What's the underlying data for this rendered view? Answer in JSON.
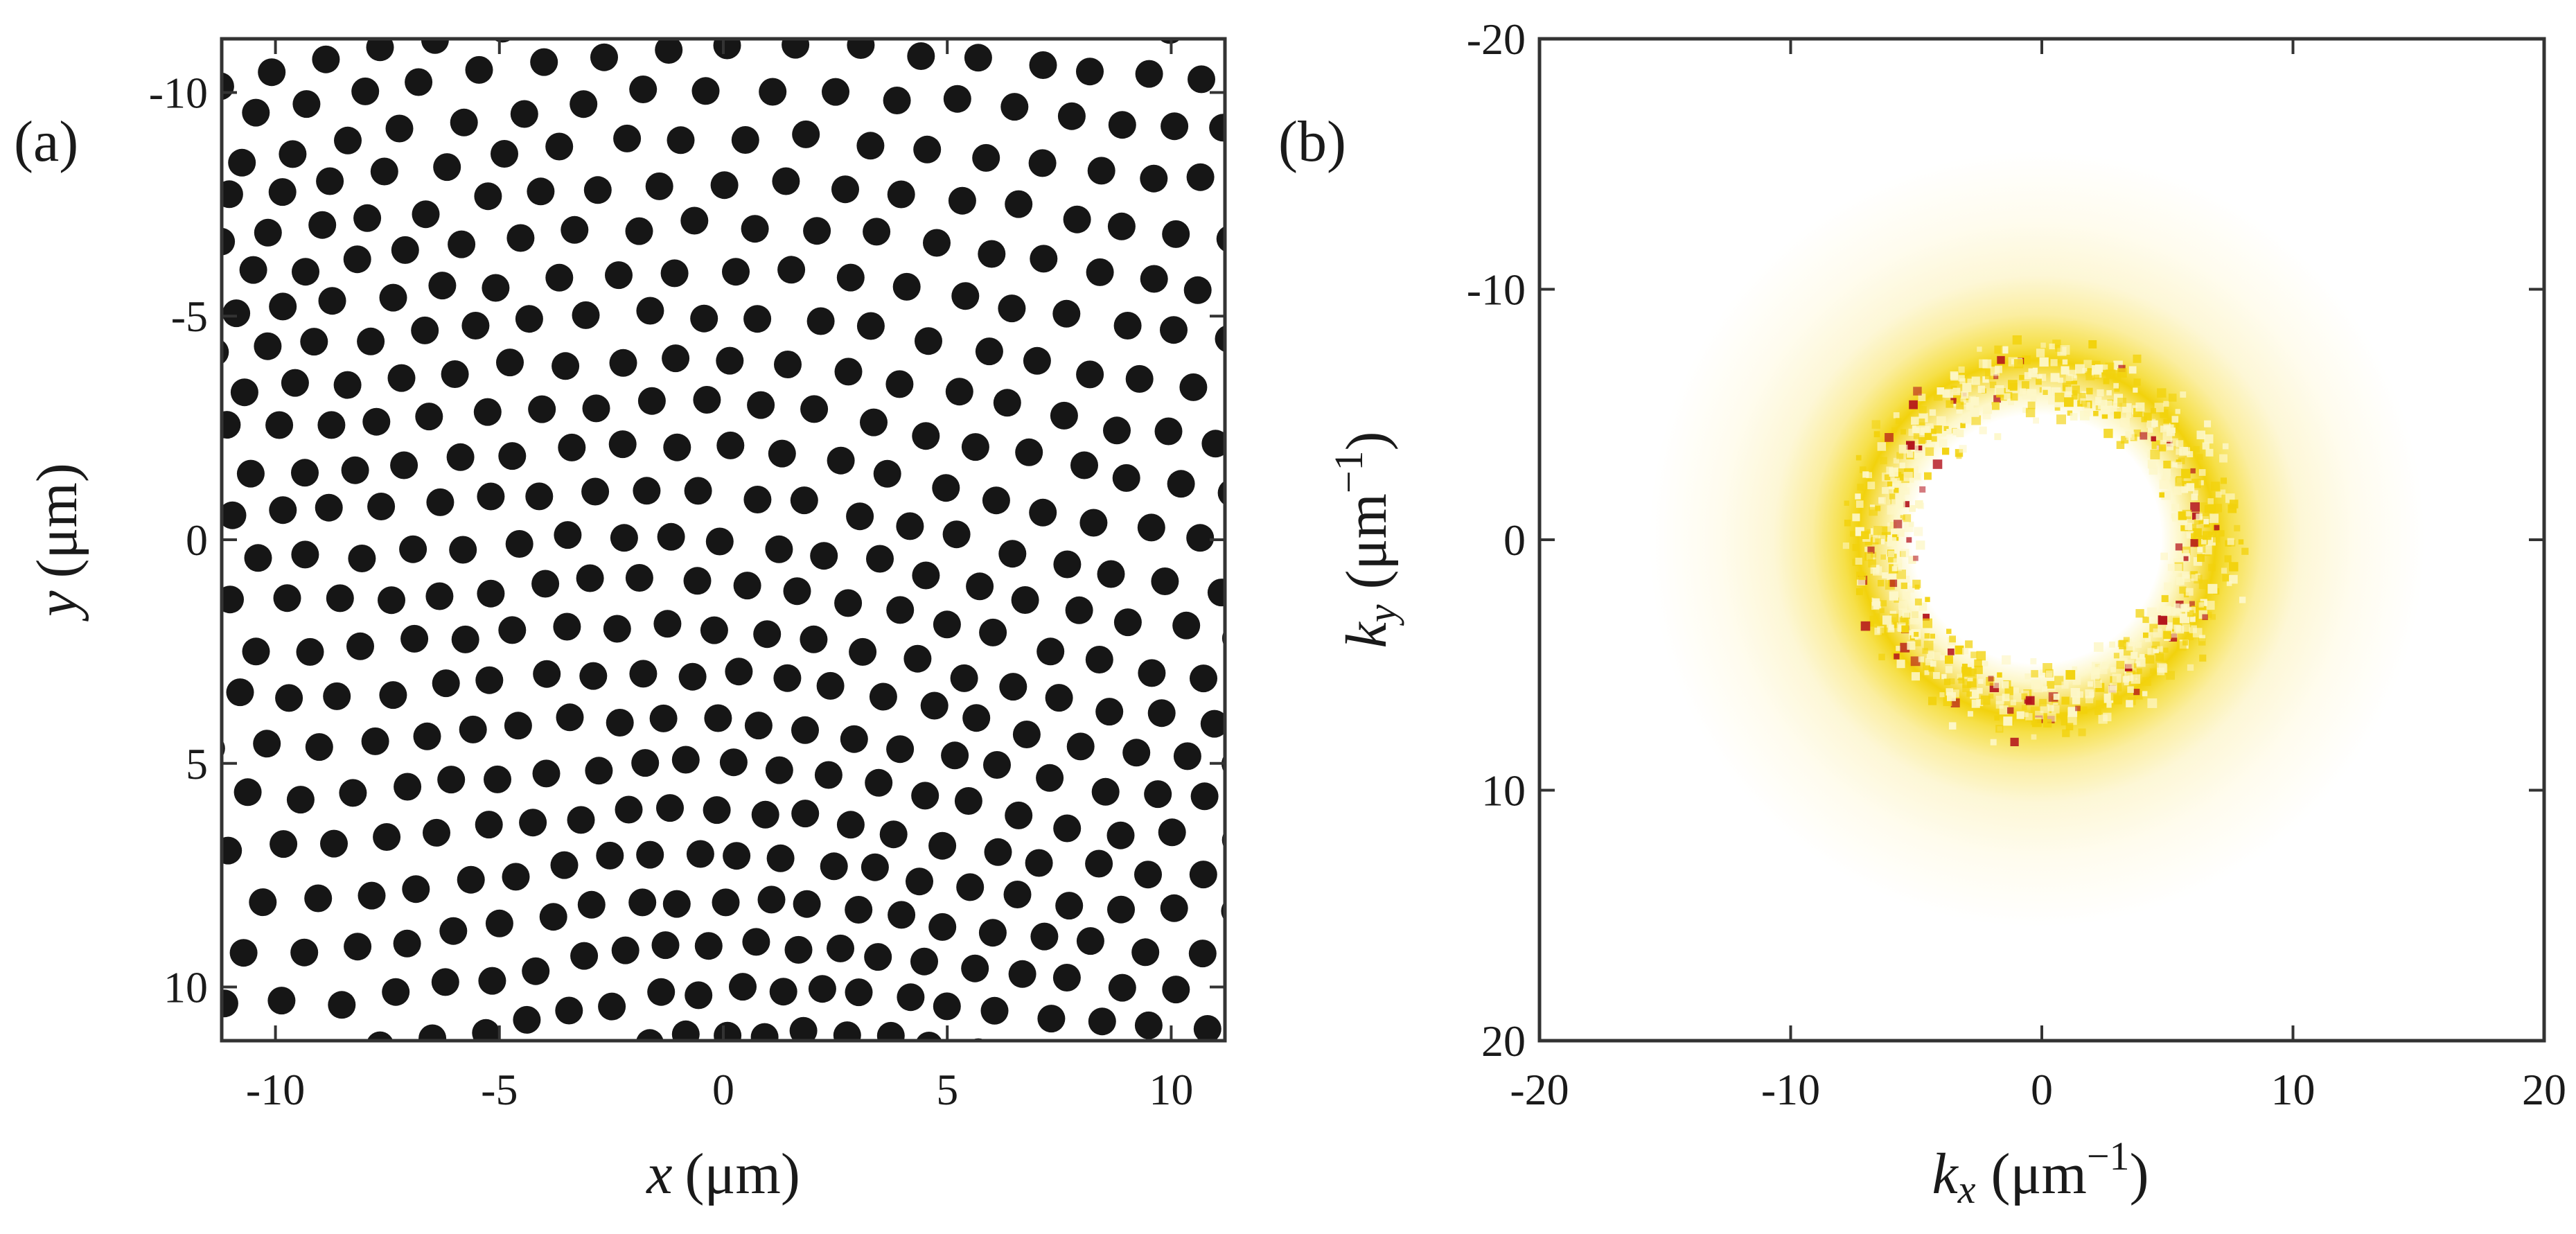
{
  "chart_data": [
    {
      "type": "scatter",
      "panel_label": "(a)",
      "xlabel": {
        "var": "x",
        "unit": "(μm)"
      },
      "ylabel": {
        "var": "y",
        "unit": "(μm)"
      },
      "xlim": [
        -11.2,
        11.2
      ],
      "ylim": [
        -11.2,
        11.2
      ],
      "y_inverted": true,
      "x_ticks": [
        -10,
        -5,
        0,
        5,
        10
      ],
      "x_tick_labels": [
        "-10",
        "-5",
        "0",
        "5",
        "10"
      ],
      "y_ticks": [
        -10,
        -5,
        0,
        5,
        10
      ],
      "y_tick_labels": [
        "-10",
        "-5",
        "0",
        "5",
        "10"
      ],
      "points_description": "dense near-hexagonal lattice of particles with spacing about 1.16 μm, slightly disordered"
    },
    {
      "type": "heatmap",
      "panel_label": "(b)",
      "xlabel": {
        "var": "k",
        "sub": "x",
        "unit_pre": "(μm",
        "unit_sup": "−1",
        "unit_post": ")"
      },
      "ylabel": {
        "var": "k",
        "sub": "y",
        "unit_pre": "(μm",
        "unit_sup": "−1",
        "unit_post": ")"
      },
      "xlim": [
        -20,
        20
      ],
      "ylim": [
        -20,
        20
      ],
      "y_inverted": true,
      "x_ticks": [
        -20,
        -10,
        0,
        10,
        20
      ],
      "x_tick_labels": [
        "-20",
        "-10",
        "0",
        "10",
        "20"
      ],
      "y_ticks": [
        -20,
        -10,
        0,
        10,
        20
      ],
      "y_tick_labels": [
        "-20",
        "-10",
        "0",
        "10",
        "20"
      ],
      "ring": {
        "center": [
          0,
          0
        ],
        "radius": 6.4,
        "width": 1.6,
        "peak_color": "#b3121b",
        "mid_color": "#f2d20c",
        "low_color": "#fdf7c8"
      }
    }
  ]
}
